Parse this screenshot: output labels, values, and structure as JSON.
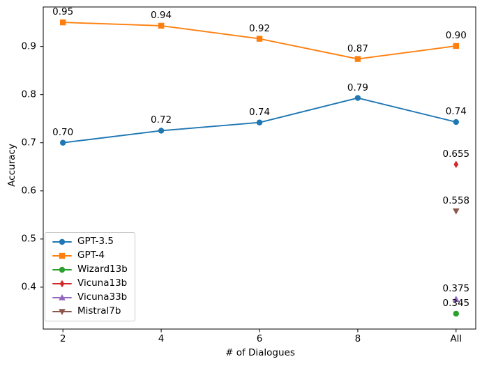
{
  "figure": {
    "background": "#ffffff",
    "text_color": "#000000",
    "spine_color": "#000000"
  },
  "chart_data": {
    "type": "line",
    "title": "",
    "xlabel": "# of Dialogues",
    "ylabel": "Accuracy",
    "grid": false,
    "xlim": [
      1.6,
      10.4
    ],
    "ylim": [
      0.313,
      0.982
    ],
    "x_ticks": [
      {
        "value": 2,
        "label": "2"
      },
      {
        "value": 4,
        "label": "4"
      },
      {
        "value": 6,
        "label": "6"
      },
      {
        "value": 8,
        "label": "8"
      },
      {
        "value": 10,
        "label": "All"
      }
    ],
    "y_ticks": [
      {
        "value": 0.4,
        "label": "0.4"
      },
      {
        "value": 0.5,
        "label": "0.5"
      },
      {
        "value": 0.6,
        "label": "0.6"
      },
      {
        "value": 0.7,
        "label": "0.7"
      },
      {
        "value": 0.8,
        "label": "0.8"
      },
      {
        "value": 0.9,
        "label": "0.9"
      }
    ],
    "legend": {
      "position": "lower left",
      "entries": [
        "GPT-3.5",
        "GPT-4",
        "Wizard13b",
        "Vicuna13b",
        "Vicuna33b",
        "Mistral7b"
      ]
    },
    "series": [
      {
        "name": "GPT-3.5",
        "color": "#1f77b4",
        "marker": "circle",
        "x": [
          2,
          4,
          6,
          8,
          10
        ],
        "values": [
          0.7,
          0.725,
          0.742,
          0.793,
          0.743
        ],
        "point_labels": [
          "0.70",
          "0.72",
          "0.74",
          "0.79",
          "0.74"
        ]
      },
      {
        "name": "GPT-4",
        "color": "#ff7f0e",
        "marker": "square",
        "x": [
          2,
          4,
          6,
          8,
          10
        ],
        "values": [
          0.95,
          0.943,
          0.916,
          0.874,
          0.901
        ],
        "point_labels": [
          "0.95",
          "0.94",
          "0.92",
          "0.87",
          "0.90"
        ]
      },
      {
        "name": "Wizard13b",
        "color": "#2ca02c",
        "marker": "circle",
        "x": [
          10
        ],
        "values": [
          0.345
        ],
        "point_labels": [
          "0.345"
        ]
      },
      {
        "name": "Vicuna13b",
        "color": "#d62728",
        "marker": "thin-diamond",
        "x": [
          10
        ],
        "values": [
          0.655
        ],
        "point_labels": [
          "0.655"
        ]
      },
      {
        "name": "Vicuna33b",
        "color": "#9467bd",
        "marker": "triangle-up",
        "x": [
          10
        ],
        "values": [
          0.375
        ],
        "point_labels": [
          "0.375"
        ]
      },
      {
        "name": "Mistral7b",
        "color": "#8c564b",
        "marker": "triangle-down",
        "x": [
          10
        ],
        "values": [
          0.558
        ],
        "point_labels": [
          "0.558"
        ]
      }
    ]
  }
}
